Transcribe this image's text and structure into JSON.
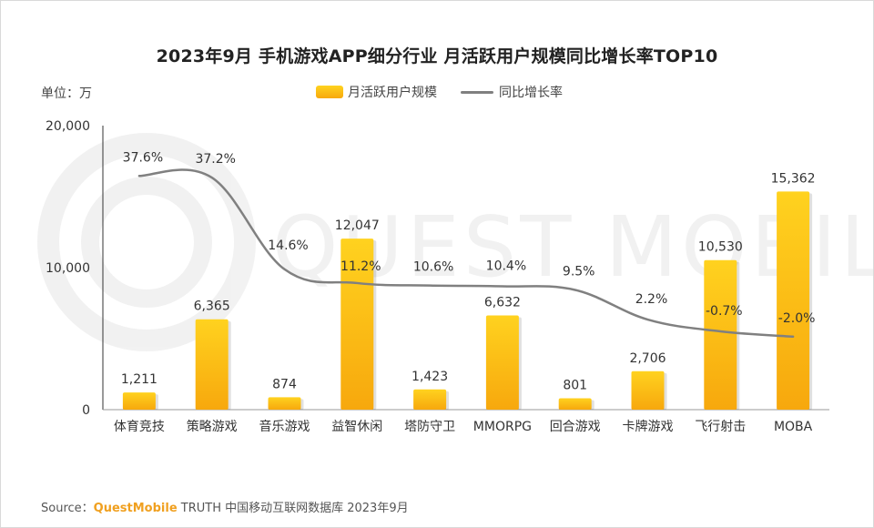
{
  "title": "2023年9月 手机游戏APP细分行业 月活跃用户规模同比增长率TOP10",
  "unit_label": "单位：万",
  "source": {
    "prefix": "Source：",
    "brand": "QuestMobile",
    "rest": " TRUTH 中国移动互联网数据库 2023年9月"
  },
  "watermark": "QUEST MOBILE",
  "colors": {
    "bar_top": "#ffd21f",
    "bar_bottom": "#f7a80d",
    "line": "#808080",
    "axis": "#333333",
    "text": "#333333"
  },
  "chart_data": {
    "type": "bar",
    "title": "2023年9月 手机游戏APP细分行业 月活跃用户规模同比增长率TOP10",
    "categories": [
      "体育竞技",
      "策略游戏",
      "音乐游戏",
      "益智休闲",
      "塔防守卫",
      "MMORPG",
      "回合游戏",
      "卡牌游戏",
      "飞行射击",
      "MOBA"
    ],
    "series": [
      {
        "name": "月活跃用户规模",
        "type": "bar",
        "values": [
          1211,
          6365,
          874,
          12047,
          1423,
          6632,
          801,
          2706,
          10530,
          15362
        ],
        "labels": [
          "1,211",
          "6,365",
          "874",
          "12,047",
          "1,423",
          "6,632",
          "801",
          "2,706",
          "10,530",
          "15,362"
        ]
      },
      {
        "name": "同比增长率",
        "type": "line",
        "values": [
          37.6,
          37.2,
          14.6,
          11.2,
          10.6,
          10.4,
          9.5,
          2.2,
          -0.7,
          -2.0
        ],
        "labels": [
          "37.6%",
          "37.2%",
          "14.6%",
          "11.2%",
          "10.6%",
          "10.4%",
          "9.5%",
          "2.2%",
          "-0.7%",
          "-2.0%"
        ]
      }
    ],
    "ylim": [
      0,
      20000
    ],
    "yticks": [
      "0",
      "10,000",
      "20,000"
    ],
    "ytick_values": [
      0,
      10000,
      20000
    ],
    "legend": "top-center",
    "grid": false
  }
}
